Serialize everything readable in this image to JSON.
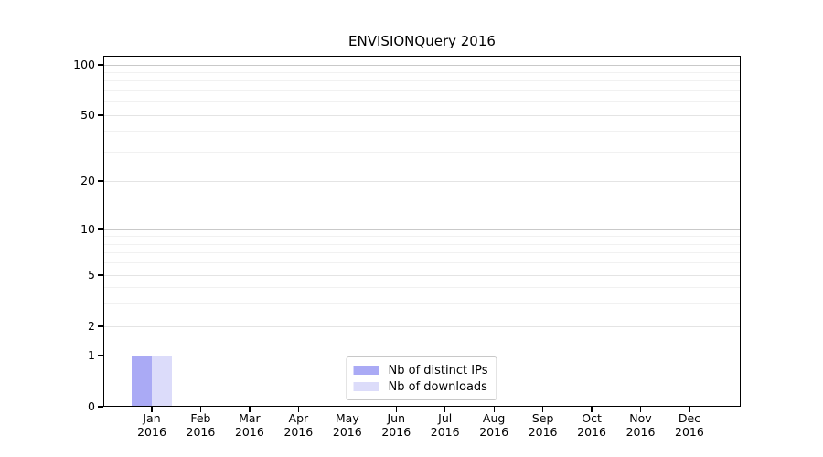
{
  "chart_data": {
    "type": "bar",
    "title": "ENVISIONQuery 2016",
    "categories": [
      "Jan 2016",
      "Feb 2016",
      "Mar 2016",
      "Apr 2016",
      "May 2016",
      "Jun 2016",
      "Jul 2016",
      "Aug 2016",
      "Sep 2016",
      "Oct 2016",
      "Nov 2016",
      "Dec 2016"
    ],
    "series": [
      {
        "name": "Nb of distinct IPs",
        "color": "#aaaaf5",
        "values": [
          1,
          0,
          0,
          0,
          0,
          0,
          0,
          0,
          0,
          0,
          0,
          0
        ]
      },
      {
        "name": "Nb of downloads",
        "color": "#dcdcfa",
        "values": [
          1,
          0,
          0,
          0,
          0,
          0,
          0,
          0,
          0,
          0,
          0,
          0
        ]
      }
    ],
    "xlabel": "",
    "ylabel": "",
    "yscale": "symlog",
    "ylim": [
      0,
      110
    ],
    "y_major_ticks": [
      0,
      1,
      2,
      5,
      10,
      20,
      50,
      100
    ],
    "y_minor_ticks": [
      3,
      4,
      6,
      7,
      8,
      9,
      30,
      40,
      60,
      70,
      80,
      90
    ],
    "grid": "horizontal",
    "legend_position": "lower center"
  }
}
